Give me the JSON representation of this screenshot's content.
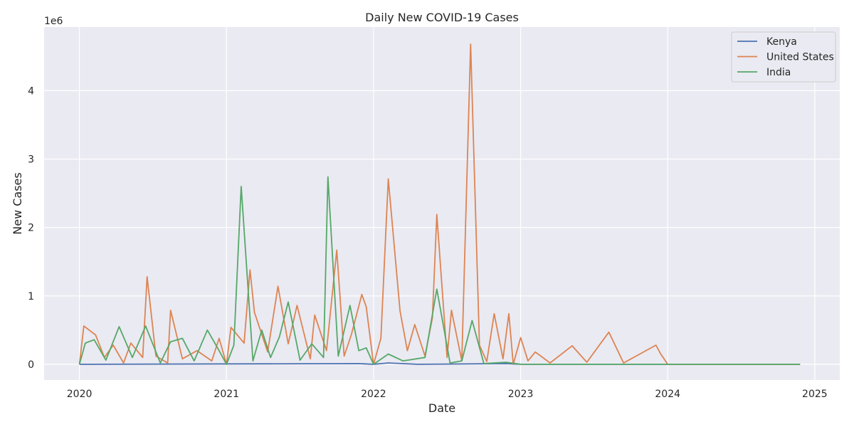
{
  "chart_data": {
    "type": "line",
    "title": "Daily New COVID-19 Cases",
    "xlabel": "Date",
    "ylabel": "New Cases",
    "y_multiplier_label": "1e6",
    "x_ticks": [
      "2020",
      "2021",
      "2022",
      "2023",
      "2024",
      "2025"
    ],
    "y_ticks": [
      "0",
      "1",
      "2",
      "3",
      "4"
    ],
    "xlim": [
      2019.76,
      2025.17
    ],
    "ylim": [
      -0.23,
      4.93
    ],
    "grid": true,
    "legend_placement": "top-right",
    "series": [
      {
        "name": "Kenya",
        "color": "#4c72b0",
        "points": [
          [
            2020.0,
            0
          ],
          [
            2021.9,
            0.01
          ],
          [
            2022.0,
            0
          ],
          [
            2022.1,
            0.02
          ],
          [
            2022.3,
            0
          ],
          [
            2022.9,
            0.01
          ],
          [
            2023.0,
            0
          ],
          [
            2024.9,
            0
          ]
        ]
      },
      {
        "name": "United States",
        "color": "#dd8452",
        "points": [
          [
            2020.0,
            0
          ],
          [
            2020.03,
            0.56
          ],
          [
            2020.11,
            0.43
          ],
          [
            2020.17,
            0.1
          ],
          [
            2020.23,
            0.28
          ],
          [
            2020.3,
            0.02
          ],
          [
            2020.35,
            0.31
          ],
          [
            2020.43,
            0.1
          ],
          [
            2020.46,
            1.28
          ],
          [
            2020.52,
            0.12
          ],
          [
            2020.6,
            0.02
          ],
          [
            2020.62,
            0.79
          ],
          [
            2020.7,
            0.08
          ],
          [
            2020.8,
            0.2
          ],
          [
            2020.9,
            0.05
          ],
          [
            2020.95,
            0.38
          ],
          [
            2021.0,
            0
          ],
          [
            2021.03,
            0.54
          ],
          [
            2021.12,
            0.31
          ],
          [
            2021.16,
            1.38
          ],
          [
            2021.19,
            0.76
          ],
          [
            2021.28,
            0.18
          ],
          [
            2021.35,
            1.14
          ],
          [
            2021.42,
            0.3
          ],
          [
            2021.48,
            0.86
          ],
          [
            2021.57,
            0.08
          ],
          [
            2021.6,
            0.72
          ],
          [
            2021.68,
            0.2
          ],
          [
            2021.75,
            1.67
          ],
          [
            2021.8,
            0.12
          ],
          [
            2021.85,
            0.44
          ],
          [
            2021.92,
            1.02
          ],
          [
            2021.95,
            0.84
          ],
          [
            2022.0,
            0
          ],
          [
            2022.05,
            0.38
          ],
          [
            2022.1,
            2.71
          ],
          [
            2022.18,
            0.78
          ],
          [
            2022.23,
            0.2
          ],
          [
            2022.28,
            0.58
          ],
          [
            2022.35,
            0.12
          ],
          [
            2022.4,
            0.68
          ],
          [
            2022.43,
            2.19
          ],
          [
            2022.5,
            0.1
          ],
          [
            2022.53,
            0.79
          ],
          [
            2022.6,
            0.05
          ],
          [
            2022.66,
            4.68
          ],
          [
            2022.72,
            0.28
          ],
          [
            2022.77,
            0.04
          ],
          [
            2022.82,
            0.74
          ],
          [
            2022.88,
            0.08
          ],
          [
            2022.92,
            0.74
          ],
          [
            2022.95,
            0
          ],
          [
            2023.0,
            0.39
          ],
          [
            2023.05,
            0.05
          ],
          [
            2023.1,
            0.18
          ],
          [
            2023.2,
            0.02
          ],
          [
            2023.35,
            0.27
          ],
          [
            2023.45,
            0.03
          ],
          [
            2023.6,
            0.47
          ],
          [
            2023.7,
            0.02
          ],
          [
            2023.92,
            0.28
          ],
          [
            2023.95,
            0.16
          ],
          [
            2024.0,
            0
          ],
          [
            2024.9,
            0
          ]
        ]
      },
      {
        "name": "India",
        "color": "#55a868",
        "points": [
          [
            2020.0,
            0
          ],
          [
            2020.04,
            0.31
          ],
          [
            2020.1,
            0.36
          ],
          [
            2020.18,
            0.06
          ],
          [
            2020.27,
            0.55
          ],
          [
            2020.36,
            0.1
          ],
          [
            2020.45,
            0.56
          ],
          [
            2020.55,
            0.02
          ],
          [
            2020.62,
            0.33
          ],
          [
            2020.7,
            0.38
          ],
          [
            2020.78,
            0.05
          ],
          [
            2020.87,
            0.5
          ],
          [
            2020.95,
            0.2
          ],
          [
            2021.0,
            0
          ],
          [
            2021.05,
            0.28
          ],
          [
            2021.1,
            2.6
          ],
          [
            2021.18,
            0.05
          ],
          [
            2021.24,
            0.5
          ],
          [
            2021.3,
            0.1
          ],
          [
            2021.36,
            0.4
          ],
          [
            2021.42,
            0.91
          ],
          [
            2021.5,
            0.06
          ],
          [
            2021.58,
            0.3
          ],
          [
            2021.66,
            0.1
          ],
          [
            2021.69,
            2.74
          ],
          [
            2021.76,
            0.12
          ],
          [
            2021.84,
            0.86
          ],
          [
            2021.9,
            0.2
          ],
          [
            2021.95,
            0.24
          ],
          [
            2022.0,
            0
          ],
          [
            2022.1,
            0.15
          ],
          [
            2022.2,
            0.05
          ],
          [
            2022.35,
            0.1
          ],
          [
            2022.43,
            1.1
          ],
          [
            2022.52,
            0.02
          ],
          [
            2022.6,
            0.05
          ],
          [
            2022.67,
            0.64
          ],
          [
            2022.75,
            0.01
          ],
          [
            2022.9,
            0.03
          ],
          [
            2023.0,
            0
          ],
          [
            2024.9,
            0
          ]
        ]
      }
    ]
  }
}
